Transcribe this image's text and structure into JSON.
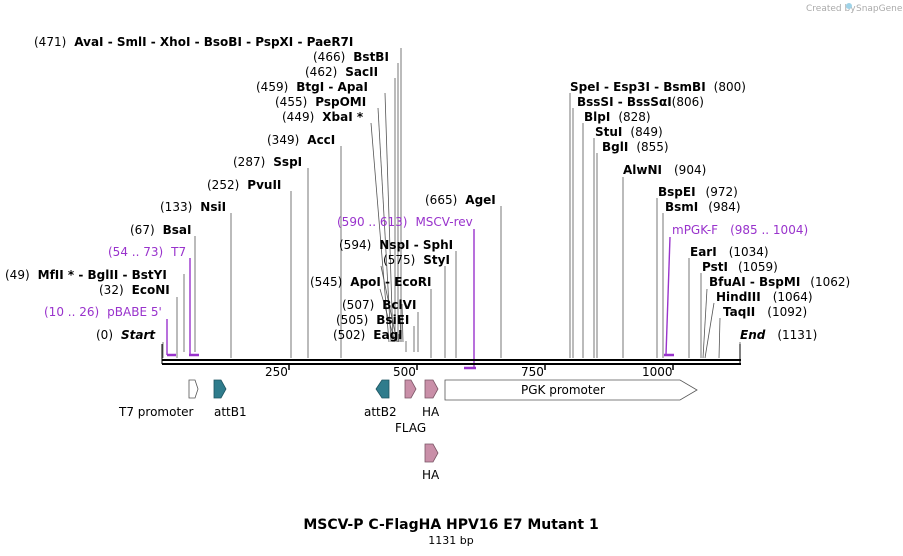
{
  "app": {
    "credit": "Created by",
    "brand": "SnapGene"
  },
  "map": {
    "title": "MSCV-P C-FlagHA HPV16 E7 Mutant 1",
    "length_label": "1131 bp",
    "length": 1131,
    "ticks": [
      "250",
      "500",
      "750",
      "1000"
    ],
    "colors": {
      "primer": "#9933cc",
      "attB": "#2f7c8c",
      "tag": "#c98fa8",
      "promoter": "#ffffff",
      "backbone": "#000000"
    }
  },
  "sites": [
    {
      "pos": "(471)",
      "name": "AvaI  -  SmlI  -  XhoI  -  BsoBI  -  PspXI  -  PaeR7I"
    },
    {
      "pos": "(466)",
      "name": "BstBI"
    },
    {
      "pos": "(462)",
      "name": "SacII"
    },
    {
      "pos": "(459)",
      "name": "BtgI  -  ApaI"
    },
    {
      "pos": "(455)",
      "name": "PspOMI"
    },
    {
      "pos": "(449)",
      "name": "XbaI *"
    },
    {
      "pos": "(349)",
      "name": "AccI"
    },
    {
      "pos": "(287)",
      "name": "SspI"
    },
    {
      "pos": "(252)",
      "name": "PvuII"
    },
    {
      "pos": "(133)",
      "name": "NsiI"
    },
    {
      "pos": "(67)",
      "name": "BsaI"
    },
    {
      "pos": "(49)",
      "name": "MfII *  -  BglII  -  BstYI"
    },
    {
      "pos": "(32)",
      "name": "EcoNI"
    },
    {
      "pos": "(0)",
      "name": "Start"
    },
    {
      "pos": "(665)",
      "name": "AgeI"
    },
    {
      "pos": "(594)",
      "name": "NspI  -  SphI"
    },
    {
      "pos": "(575)",
      "name": "StyI"
    },
    {
      "pos": "(545)",
      "name": "ApoI  -  EcoRI"
    },
    {
      "pos": "(507)",
      "name": "BclVI"
    },
    {
      "pos": "(505)",
      "name": "BsiEI"
    },
    {
      "pos": "(502)",
      "name": "EagI"
    },
    {
      "pos": "(800)",
      "name": "SpeI  -  Esp3I  -  BsmBI"
    },
    {
      "pos": "(806)",
      "name": "BssSI  -  BssSαI"
    },
    {
      "pos": "(828)",
      "name": "BlpI"
    },
    {
      "pos": "(849)",
      "name": "StuI"
    },
    {
      "pos": "(855)",
      "name": "BglI"
    },
    {
      "pos": "(904)",
      "name": "AlwNI"
    },
    {
      "pos": "(972)",
      "name": "BspEI"
    },
    {
      "pos": "(984)",
      "name": "BsmI"
    },
    {
      "pos": "(1034)",
      "name": "EarI"
    },
    {
      "pos": "(1059)",
      "name": "PstI"
    },
    {
      "pos": "(1062)",
      "name": "BfuAI  -  BspMI"
    },
    {
      "pos": "(1064)",
      "name": "HindIII"
    },
    {
      "pos": "(1092)",
      "name": "TaqII"
    },
    {
      "pos": "(1131)",
      "name": "End"
    }
  ],
  "primers": [
    {
      "range": "(590 .. 613)",
      "name": "MSCV-rev"
    },
    {
      "range": "(54 .. 73)",
      "name": "T7"
    },
    {
      "range": "(10 .. 26)",
      "name": "pBABE 5'"
    },
    {
      "range": "(985 .. 1004)",
      "name": "mPGK-F"
    }
  ],
  "features": [
    {
      "name": "T7 promoter"
    },
    {
      "name": "attB1"
    },
    {
      "name": "attB2"
    },
    {
      "name": "FLAG"
    },
    {
      "name": "HA"
    },
    {
      "name": "PGK promoter"
    },
    {
      "name": "HA"
    }
  ]
}
